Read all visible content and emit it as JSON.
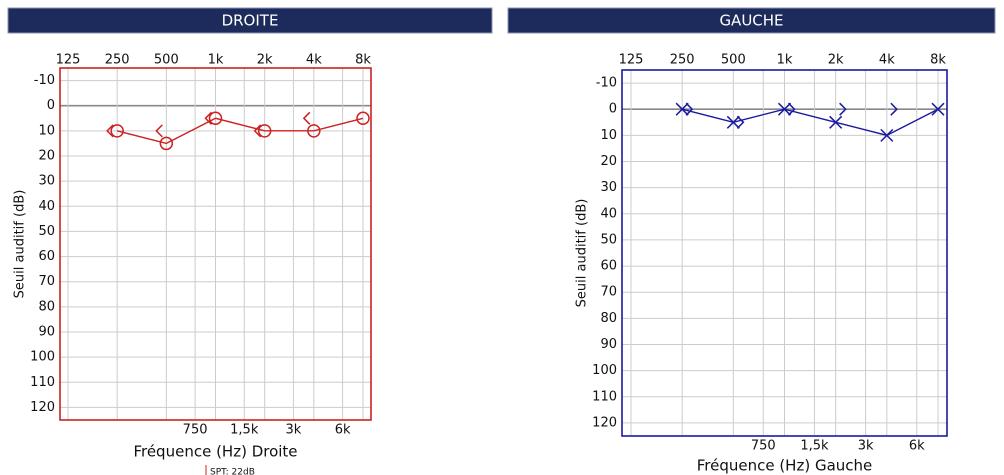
{
  "chart_data": [
    {
      "type": "line",
      "title": "DROITE",
      "xlabel": "Fréquence (Hz) Droite",
      "ylabel": "Seuil auditif (dB)",
      "color": "#cc2222",
      "xscale": "log",
      "yinverted": true,
      "grid": true,
      "x": [
        250,
        500,
        1000,
        2000,
        4000,
        8000
      ],
      "xlim": [
        125,
        8000
      ],
      "xticks": [
        125,
        250,
        500,
        {
          "value": 1000,
          "label": "1k"
        },
        {
          "value": 2000,
          "label": "2k"
        },
        {
          "value": 4000,
          "label": "4k"
        },
        {
          "value": 8000,
          "label": "8k"
        }
      ],
      "xticks2": [
        750,
        {
          "value": 1500,
          "label": "1,5k"
        },
        {
          "value": 3000,
          "label": "3k"
        },
        {
          "value": 6000,
          "label": "6k"
        }
      ],
      "ylim": [
        -15,
        125
      ],
      "yticks": [
        -10,
        0,
        10,
        20,
        30,
        40,
        50,
        60,
        70,
        80,
        90,
        100,
        110,
        120
      ],
      "series": [
        {
          "marker": "circle",
          "connect": true,
          "color": "#cc2222",
          "values": [
            10,
            15,
            5,
            10,
            10,
            5
          ]
        },
        {
          "marker": "<",
          "connect": false,
          "color": "#cc2222",
          "values": [
            10,
            10,
            5,
            10,
            5,
            null
          ]
        }
      ],
      "annotation": "SPT: 22dB"
    },
    {
      "type": "line",
      "title": "GAUCHE",
      "xlabel": "Fréquence (Hz) Gauche",
      "ylabel": "Seuil auditif (dB)",
      "color": "#1a1aa0",
      "xscale": "log",
      "yinverted": true,
      "grid": true,
      "x": [
        250,
        500,
        1000,
        2000,
        4000,
        8000
      ],
      "xlim": [
        125,
        8000
      ],
      "xticks": [
        125,
        250,
        500,
        {
          "value": 1000,
          "label": "1k"
        },
        {
          "value": 2000,
          "label": "2k"
        },
        {
          "value": 4000,
          "label": "4k"
        },
        {
          "value": 8000,
          "label": "8k"
        }
      ],
      "xticks2": [
        750,
        {
          "value": 1500,
          "label": "1,5k"
        },
        {
          "value": 3000,
          "label": "3k"
        },
        {
          "value": 6000,
          "label": "6k"
        }
      ],
      "ylim": [
        -15,
        125
      ],
      "yticks": [
        -10,
        0,
        10,
        20,
        30,
        40,
        50,
        60,
        70,
        80,
        90,
        100,
        110,
        120
      ],
      "series": [
        {
          "marker": "x",
          "connect": true,
          "color": "#1a1aa0",
          "values": [
            0,
            5,
            0,
            5,
            10,
            0
          ]
        },
        {
          "marker": ">",
          "connect": false,
          "color": "#1a1aa0",
          "values": [
            0,
            5,
            0,
            0,
            0,
            null
          ]
        }
      ]
    }
  ]
}
